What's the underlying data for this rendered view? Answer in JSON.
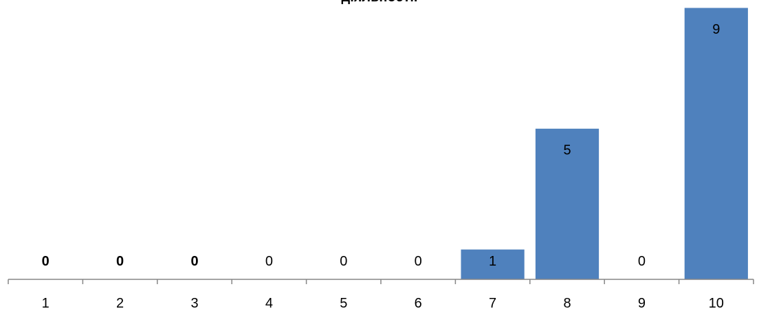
{
  "chart_data": {
    "type": "bar",
    "title": "діяльності.",
    "categories": [
      "1",
      "2",
      "3",
      "4",
      "5",
      "6",
      "7",
      "8",
      "9",
      "10"
    ],
    "values": [
      0,
      0,
      0,
      0,
      0,
      0,
      1,
      5,
      0,
      9
    ],
    "data_labels": [
      "0",
      "0",
      "0",
      "0",
      "0",
      "0",
      "1",
      "5",
      "0",
      "9"
    ],
    "bold_labels": [
      true,
      true,
      true,
      false,
      false,
      false,
      false,
      false,
      false,
      false
    ],
    "ylim": [
      0,
      9
    ],
    "grid": false,
    "legend": "none",
    "colors": {
      "bar": "#4f81bd",
      "bar_border": "#ffffff",
      "axis": "#868686",
      "text": "#000000"
    }
  }
}
